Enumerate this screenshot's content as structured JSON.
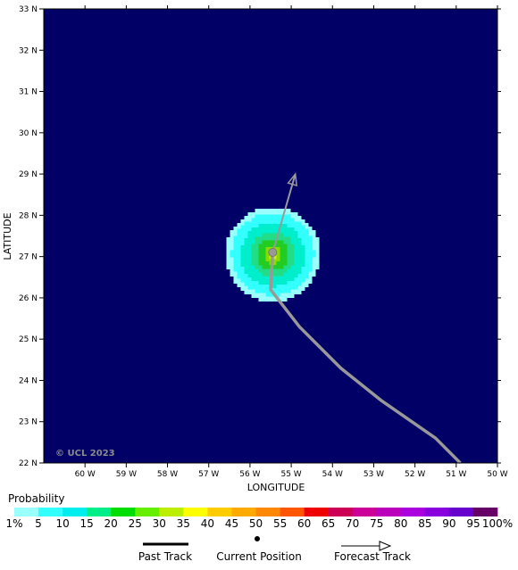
{
  "chart_data": {
    "type": "heatmap",
    "xlabel": "LONGITUDE",
    "ylabel": "LATITUDE",
    "x_ticks": [
      "60 W",
      "59 W",
      "58 W",
      "57 W",
      "56 W",
      "55 W",
      "54 W",
      "53 W",
      "52 W",
      "51 W",
      "50 W"
    ],
    "y_ticks": [
      "22 N",
      "23 N",
      "24 N",
      "25 N",
      "26 N",
      "27 N",
      "28 N",
      "29 N",
      "30 N",
      "31 N",
      "32 N",
      "33 N"
    ],
    "xlim": [
      -61,
      -50
    ],
    "ylim": [
      22,
      33
    ],
    "copyright": "© UCL 2023",
    "background_color": "#000066",
    "probability_center": {
      "lon": -55.45,
      "lat": 27.1
    },
    "probability_levels": [
      {
        "threshold": "1%",
        "radius_deg": 1.15,
        "color": "#99ffff"
      },
      {
        "threshold": "5",
        "radius_deg": 1.0,
        "color": "#33ffff"
      },
      {
        "threshold": "10",
        "radius_deg": 0.78,
        "color": "#00eecc"
      },
      {
        "threshold": "15",
        "radius_deg": 0.55,
        "color": "#22dd88"
      },
      {
        "threshold": "20",
        "radius_deg": 0.38,
        "color": "#22cc22"
      },
      {
        "threshold": "25",
        "radius_deg": 0.22,
        "color": "#88dd00"
      },
      {
        "threshold": "30",
        "radius_deg": 0.1,
        "color": "#ccee00"
      }
    ],
    "past_track": [
      {
        "lon": -50.9,
        "lat": 22.0
      },
      {
        "lon": -51.5,
        "lat": 22.6
      },
      {
        "lon": -52.8,
        "lat": 23.5
      },
      {
        "lon": -53.8,
        "lat": 24.3
      },
      {
        "lon": -54.8,
        "lat": 25.3
      },
      {
        "lon": -55.5,
        "lat": 26.2
      },
      {
        "lon": -55.45,
        "lat": 27.1
      }
    ],
    "current_position": {
      "lon": -55.45,
      "lat": 27.1
    },
    "forecast_track": [
      {
        "lon": -55.45,
        "lat": 27.1
      },
      {
        "lon": -54.9,
        "lat": 29.0
      }
    ],
    "track_color": "#999999"
  },
  "legend": {
    "title": "Probability",
    "labels": [
      "1%",
      "5",
      "10",
      "15",
      "20",
      "25",
      "30",
      "35",
      "40",
      "45",
      "50",
      "55",
      "60",
      "65",
      "70",
      "75",
      "80",
      "85",
      "90",
      "95",
      "100%"
    ],
    "colors": [
      "#99ffff",
      "#33ffff",
      "#00eeee",
      "#00ee88",
      "#00dd00",
      "#66ee00",
      "#bbee00",
      "#ffff00",
      "#ffcc00",
      "#ffaa00",
      "#ff8800",
      "#ff5500",
      "#ee0000",
      "#cc0055",
      "#cc0099",
      "#bb00bb",
      "#aa00dd",
      "#8800dd",
      "#6600cc",
      "#660066"
    ],
    "past_track_label": "Past Track",
    "current_position_label": "Current Position",
    "forecast_track_label": "Forecast Track"
  }
}
